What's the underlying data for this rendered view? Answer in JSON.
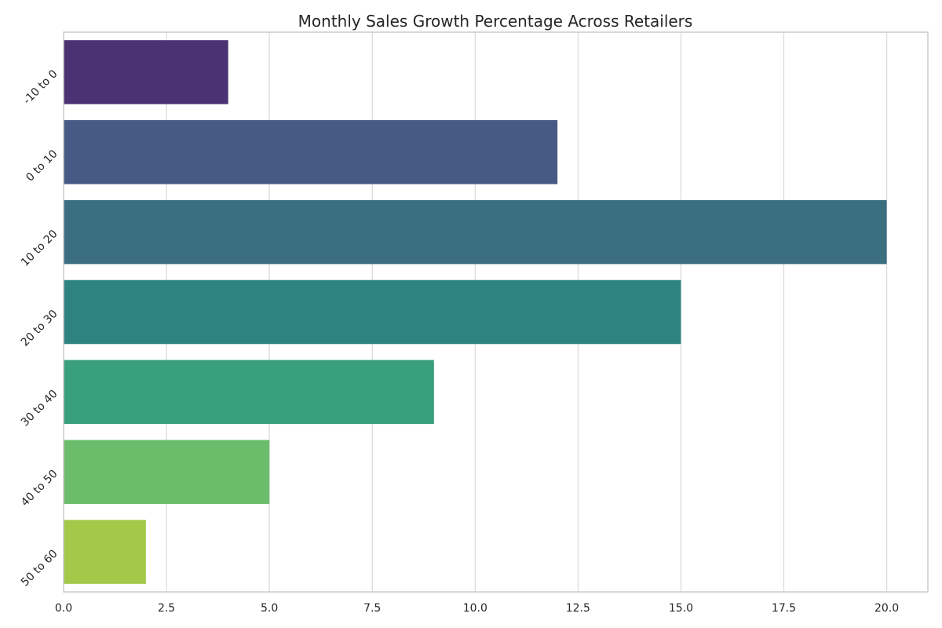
{
  "chart_data": {
    "type": "bar",
    "orientation": "horizontal",
    "title": "Monthly Sales Growth Percentage Across Retailers",
    "xlabel": "",
    "ylabel": "",
    "categories": [
      "-10 to 0",
      "0 to 10",
      "10 to 20",
      "20 to 30",
      "30 to 40",
      "40 to 50",
      "50 to 60"
    ],
    "values": [
      4,
      12,
      20,
      15,
      9,
      5,
      2
    ],
    "colors": [
      "#4a3372",
      "#465a85",
      "#3a6e80",
      "#2e8380",
      "#3a9f7c",
      "#6cbd6b",
      "#a3c84a"
    ],
    "xlim": [
      0,
      21
    ],
    "xticks": [
      0.0,
      2.5,
      5.0,
      7.5,
      10.0,
      12.5,
      15.0,
      17.5,
      20.0
    ],
    "xtick_labels": [
      "0.0",
      "2.5",
      "5.0",
      "7.5",
      "10.0",
      "12.5",
      "15.0",
      "17.5",
      "20.0"
    ],
    "grid": "vertical",
    "legend": "none",
    "style": {
      "grid_color": "#d9d9d9",
      "spine_color": "#cccccc",
      "text_color": "#262626",
      "background": "#ffffff"
    }
  }
}
